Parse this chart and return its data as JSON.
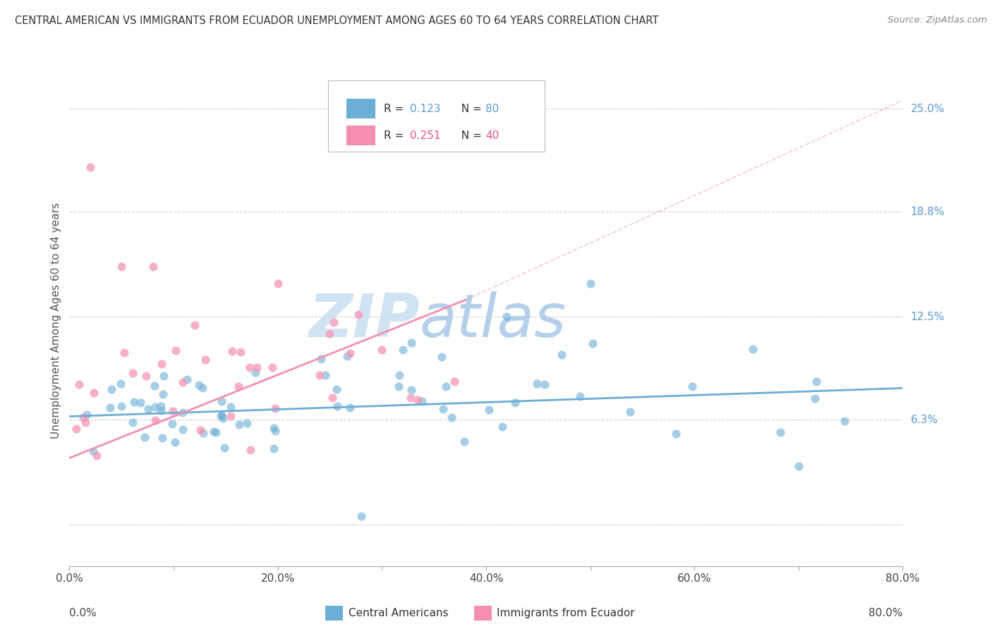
{
  "title": "CENTRAL AMERICAN VS IMMIGRANTS FROM ECUADOR UNEMPLOYMENT AMONG AGES 60 TO 64 YEARS CORRELATION CHART",
  "source": "Source: ZipAtlas.com",
  "ylabel": "Unemployment Among Ages 60 to 64 years",
  "xlim": [
    0.0,
    0.8
  ],
  "ylim": [
    -0.025,
    0.27
  ],
  "right_yticks": [
    0.0,
    0.063,
    0.125,
    0.188,
    0.25
  ],
  "right_yticklabels": [
    "",
    "6.3%",
    "12.5%",
    "18.8%",
    "25.0%"
  ],
  "xtick_labels": [
    "0.0%",
    "",
    "20.0%",
    "",
    "40.0%",
    "",
    "60.0%",
    "",
    "80.0%"
  ],
  "xtick_positions": [
    0.0,
    0.1,
    0.2,
    0.3,
    0.4,
    0.5,
    0.6,
    0.7,
    0.8
  ],
  "blue_color": "#6baed6",
  "pink_color": "#f48fb1",
  "blue_trend": [
    0.0,
    0.065,
    0.8,
    0.082
  ],
  "pink_trend_solid": [
    0.0,
    0.04,
    0.38,
    0.135
  ],
  "pink_trend_dashed": [
    0.38,
    0.135,
    0.8,
    0.255
  ],
  "watermark_zip": "ZIP",
  "watermark_atlas": "atlas",
  "background_color": "#ffffff",
  "grid_color": "#d0d0d0",
  "title_fontsize": 11,
  "source_fontsize": 10
}
